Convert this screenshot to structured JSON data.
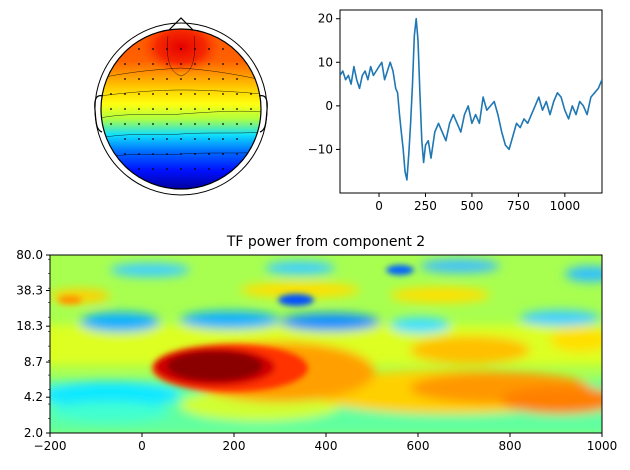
{
  "chart_data": [
    {
      "type": "heatmap",
      "subtype": "topomap",
      "colormap": "jet",
      "title": "",
      "sensor_marker": "dot",
      "notes_visible": "scalp map of component with positive (red) frontal region and negative (blue) posterior region"
    },
    {
      "type": "line",
      "title": "",
      "xlabel": "",
      "ylabel": "",
      "xlim": [
        -210,
        1200
      ],
      "ylim": [
        -20,
        22
      ],
      "xticks": [
        "0",
        "250",
        "500",
        "750",
        "1000"
      ],
      "yticks": [
        "20",
        "10",
        "0",
        "−10"
      ],
      "color": "#1f77b4",
      "series": [
        {
          "x": [
            -210,
            -195,
            -180,
            -165,
            -150,
            -135,
            -120,
            -105,
            -90,
            -75,
            -60,
            -45,
            -30,
            -15,
            0,
            15,
            30,
            45,
            60,
            75,
            90,
            100,
            110,
            120,
            130,
            140,
            150,
            160,
            170,
            180,
            190,
            200,
            210,
            220,
            230,
            240,
            250,
            265,
            280,
            300,
            320,
            340,
            360,
            380,
            400,
            420,
            440,
            460,
            480,
            500,
            520,
            540,
            560,
            580,
            600,
            620,
            640,
            660,
            680,
            700,
            720,
            740,
            760,
            780,
            800,
            820,
            840,
            860,
            880,
            900,
            920,
            940,
            960,
            980,
            1000,
            1020,
            1040,
            1060,
            1080,
            1100,
            1120,
            1140,
            1160,
            1180,
            1200
          ],
          "y": [
            7,
            8,
            6,
            7,
            5,
            9,
            6,
            4,
            7,
            8,
            6,
            9,
            7,
            8,
            9,
            10,
            6,
            8,
            10,
            8,
            4,
            3,
            -2,
            -6,
            -10,
            -15,
            -17,
            -11,
            -4,
            5,
            16,
            20,
            15,
            3,
            -8,
            -13,
            -9,
            -8,
            -12,
            -6,
            -4,
            -6,
            -8,
            -4,
            -2,
            -4,
            -6,
            -2,
            0,
            -4,
            -2,
            -4,
            2,
            -1,
            0,
            1,
            -2,
            -6,
            -9,
            -10,
            -7,
            -4,
            -5,
            -3,
            -4,
            -2,
            0,
            2,
            -1,
            1,
            -2,
            1,
            3,
            2,
            -1,
            -3,
            0,
            -2,
            1,
            0,
            -2,
            2,
            3,
            4,
            6
          ]
        }
      ]
    },
    {
      "type": "heatmap",
      "title": "TF power from component 2",
      "xlabel": "",
      "ylabel": "",
      "colormap": "jet",
      "xlim": [
        -200,
        1000
      ],
      "xticks": [
        "−200",
        "0",
        "200",
        "400",
        "600",
        "800",
        "1000"
      ],
      "yticks": [
        "80.0",
        "38.3",
        "18.3",
        "8.7",
        "4.2",
        "2.0"
      ],
      "y_scale": "log"
    }
  ]
}
